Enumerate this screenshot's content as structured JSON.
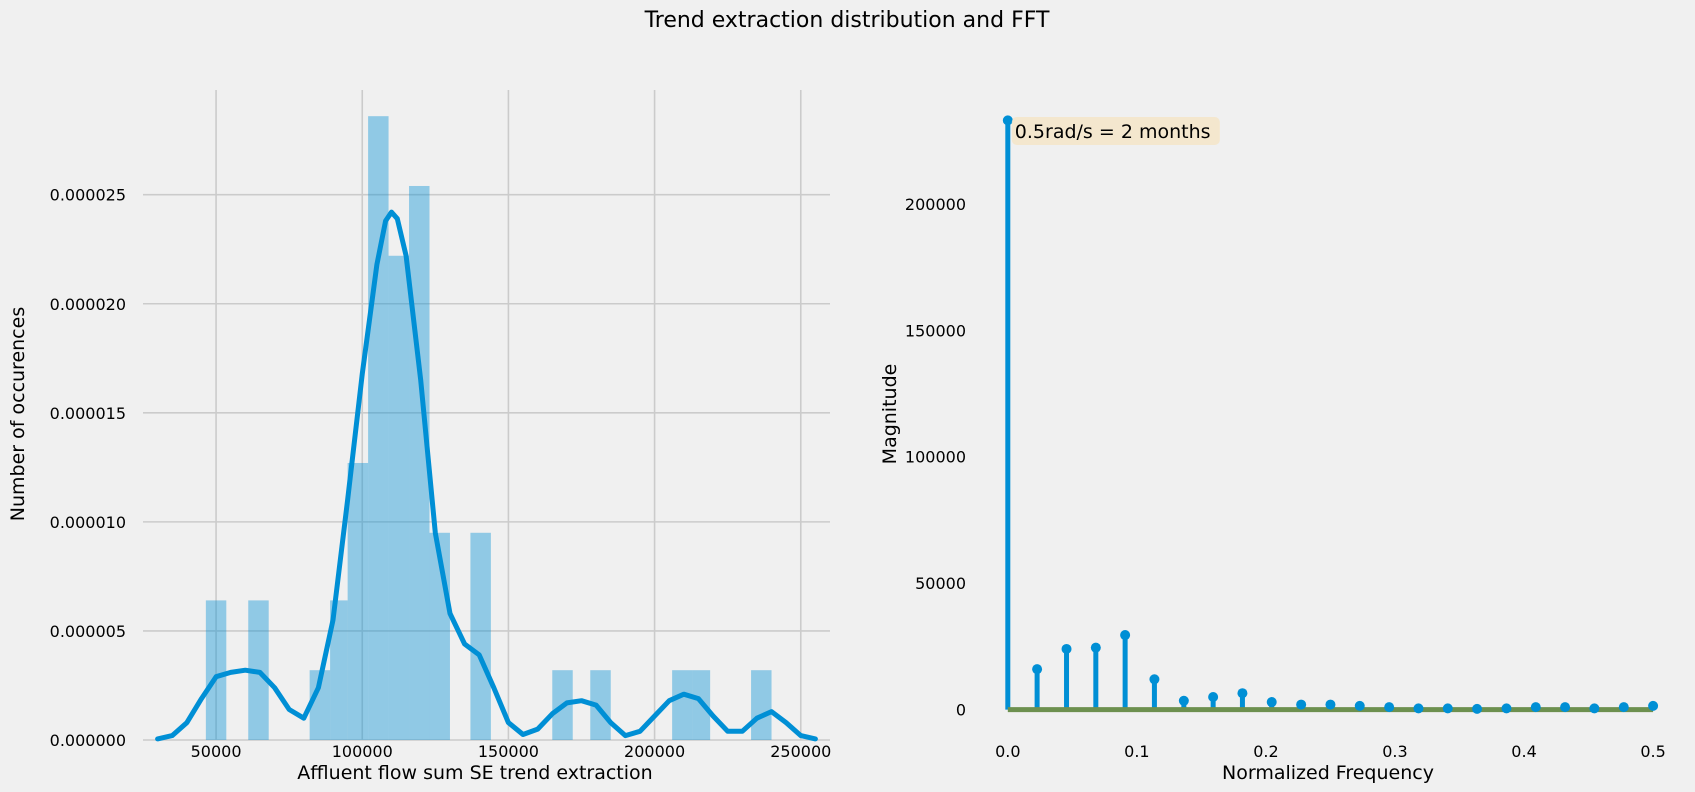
{
  "suptitle": "Trend extraction distribution and FFT",
  "chart_data": [
    {
      "type": "bar",
      "subtype": "histogram-with-kde",
      "xlabel": "Affluent flow sum SE trend extraction",
      "ylabel": "Number of occurences",
      "xlim": [
        25000,
        260000
      ],
      "ylim": [
        0,
        2.98e-05
      ],
      "xticks": [
        50000,
        100000,
        150000,
        200000,
        250000
      ],
      "xtick_labels": [
        "50000",
        "100000",
        "150000",
        "200000",
        "250000"
      ],
      "yticks": [
        0,
        5e-06,
        1e-05,
        1.5e-05,
        2e-05,
        2.5e-05
      ],
      "ytick_labels": [
        "0.000000",
        "0.000005",
        "0.000010",
        "0.000015",
        "0.000020",
        "0.000025"
      ],
      "grid": true,
      "bar_color": "#008fd5",
      "bins": [
        {
          "x0": 46500,
          "x1": 53500,
          "value": 6.4e-06
        },
        {
          "x0": 61000,
          "x1": 68000,
          "value": 6.4e-06
        },
        {
          "x0": 82000,
          "x1": 89000,
          "value": 3.2e-06
        },
        {
          "x0": 89000,
          "x1": 95000,
          "value": 6.4e-06
        },
        {
          "x0": 95000,
          "x1": 102000,
          "value": 1.27e-05
        },
        {
          "x0": 102000,
          "x1": 109000,
          "value": 2.86e-05
        },
        {
          "x0": 109000,
          "x1": 116000,
          "value": 2.22e-05
        },
        {
          "x0": 116000,
          "x1": 123000,
          "value": 2.54e-05
        },
        {
          "x0": 123000,
          "x1": 130000,
          "value": 9.5e-06
        },
        {
          "x0": 137000,
          "x1": 144000,
          "value": 9.5e-06
        },
        {
          "x0": 165000,
          "x1": 172000,
          "value": 3.2e-06
        },
        {
          "x0": 178000,
          "x1": 185000,
          "value": 3.2e-06
        },
        {
          "x0": 206000,
          "x1": 213000,
          "value": 3.2e-06
        },
        {
          "x0": 213000,
          "x1": 219000,
          "value": 3.2e-06
        },
        {
          "x0": 233000,
          "x1": 240000,
          "value": 3.2e-06
        }
      ],
      "kde": {
        "x": [
          30000,
          35000,
          40000,
          45000,
          50000,
          55000,
          60000,
          65000,
          70000,
          75000,
          80000,
          85000,
          90000,
          95000,
          100000,
          105000,
          108000,
          110000,
          112000,
          115000,
          120000,
          125000,
          130000,
          135000,
          140000,
          145000,
          150000,
          155000,
          160000,
          165000,
          170000,
          175000,
          180000,
          185000,
          190000,
          195000,
          200000,
          205000,
          210000,
          215000,
          220000,
          225000,
          230000,
          235000,
          240000,
          245000,
          250000,
          255000
        ],
        "y": [
          5e-08,
          2e-07,
          8e-07,
          1.9e-06,
          2.9e-06,
          3.1e-06,
          3.2e-06,
          3.1e-06,
          2.4e-06,
          1.4e-06,
          1e-06,
          2.4e-06,
          5.5e-06,
          1.1e-05,
          1.68e-05,
          2.18e-05,
          2.38e-05,
          2.42e-05,
          2.39e-05,
          2.22e-05,
          1.65e-05,
          9.5e-06,
          5.8e-06,
          4.4e-06,
          3.9e-06,
          2.4e-06,
          8e-07,
          2.5e-07,
          5e-07,
          1.2e-06,
          1.7e-06,
          1.8e-06,
          1.6e-06,
          8e-07,
          2e-07,
          4e-07,
          1.1e-06,
          1.8e-06,
          2.1e-06,
          1.9e-06,
          1.1e-06,
          4e-07,
          4e-07,
          1e-06,
          1.3e-06,
          8e-07,
          2e-07,
          5e-08
        ],
        "color": "#008fd5"
      }
    },
    {
      "type": "stem",
      "xlabel": "Normalized Frequency",
      "ylabel": "Magnitude",
      "xlim": [
        -0.02,
        0.51
      ],
      "ylim": [
        -12000,
        245000
      ],
      "xticks": [
        0,
        0.1,
        0.2,
        0.3,
        0.4,
        0.5
      ],
      "xtick_labels": [
        "0.0",
        "0.1",
        "0.2",
        "0.3",
        "0.4",
        "0.5"
      ],
      "yticks": [
        0,
        50000,
        100000,
        150000,
        200000
      ],
      "ytick_labels": [
        "0",
        "50000",
        "100000",
        "150000",
        "200000"
      ],
      "grid": false,
      "stem_color": "#008fd5",
      "baseline_color": "#6d904f",
      "x": [
        0,
        0.0227,
        0.0455,
        0.0682,
        0.0909,
        0.1136,
        0.1364,
        0.1591,
        0.1818,
        0.2045,
        0.2273,
        0.25,
        0.2727,
        0.2955,
        0.3182,
        0.3409,
        0.3636,
        0.3864,
        0.4091,
        0.4318,
        0.4545,
        0.4773,
        0.5
      ],
      "y": [
        233000,
        16000,
        24000,
        24500,
        29500,
        12000,
        3500,
        5000,
        6500,
        3000,
        2000,
        2000,
        1500,
        1000,
        500,
        500,
        300,
        500,
        1000,
        1000,
        500,
        1000,
        1500
      ],
      "annotation": "0.5rad/s = 2 months",
      "annotation_bg": "#f5e5c8"
    }
  ]
}
